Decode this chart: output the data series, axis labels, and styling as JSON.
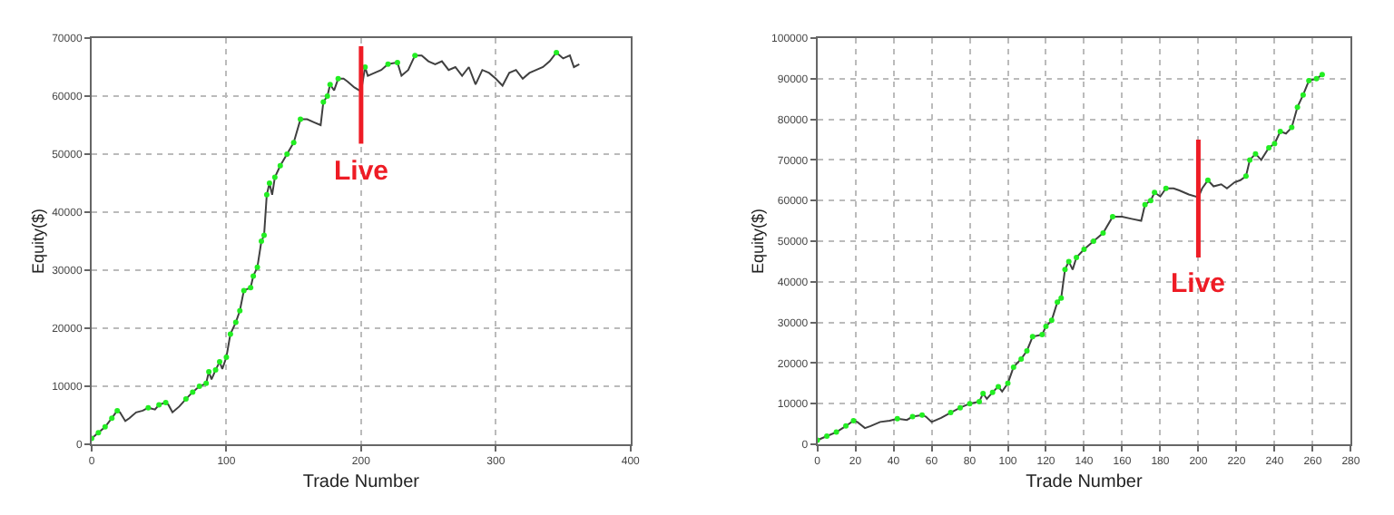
{
  "chart_data": [
    {
      "type": "line",
      "xlabel": "Trade Number",
      "ylabel": "Equity($)",
      "xlim": [
        0,
        400
      ],
      "xticks": [
        0,
        100,
        200,
        300,
        400
      ],
      "ylim": [
        0,
        70000
      ],
      "yticks": [
        0,
        10000,
        20000,
        30000,
        40000,
        50000,
        60000,
        70000
      ],
      "grid": true,
      "ref_lines": [
        {
          "axis": "x",
          "value": 200,
          "label": "Live",
          "color": "#ee1c25"
        }
      ],
      "series": [
        {
          "color": "#404040",
          "x": [
            0,
            5,
            10,
            15,
            19,
            21,
            25,
            28,
            33,
            38,
            42,
            47,
            50,
            55,
            57,
            60,
            65,
            70,
            75,
            80,
            85,
            87,
            89,
            92,
            95,
            97,
            100,
            103,
            107,
            110,
            113,
            118,
            120,
            123,
            126,
            128,
            130,
            132,
            134,
            136,
            140,
            145,
            150,
            155,
            160,
            165,
            170,
            172,
            175,
            177,
            180,
            183,
            187,
            190,
            195,
            200,
            203,
            205,
            210,
            215,
            220,
            227,
            230,
            235,
            240,
            245,
            250,
            255,
            260,
            265,
            270,
            275,
            280,
            285,
            290,
            295,
            300,
            305,
            310,
            315,
            320,
            325,
            330,
            335,
            340,
            345,
            350,
            355,
            358,
            362
          ],
          "values": [
            1000,
            2000,
            3000,
            4500,
            5800,
            5500,
            4000,
            4500,
            5500,
            5800,
            6300,
            6000,
            6800,
            7200,
            6800,
            5500,
            6500,
            7800,
            9000,
            10000,
            10500,
            12500,
            11200,
            12800,
            14200,
            13000,
            15000,
            19000,
            21000,
            23000,
            26500,
            27000,
            29000,
            30500,
            35000,
            36000,
            43000,
            45000,
            43000,
            46000,
            48000,
            50000,
            52000,
            56000,
            56000,
            55500,
            55000,
            59000,
            60000,
            62000,
            61000,
            63000,
            63000,
            62500,
            61500,
            60800,
            65000,
            63500,
            64000,
            64500,
            65500,
            65800,
            63500,
            64500,
            67000,
            67000,
            66000,
            65500,
            66000,
            64500,
            65000,
            63500,
            65000,
            62000,
            64500,
            64000,
            63000,
            61800,
            64000,
            64500,
            63000,
            64000,
            64500,
            65000,
            66000,
            67500,
            66500,
            67000,
            65000,
            65500
          ]
        },
        {
          "type": "scatter",
          "marker": "circle",
          "color": "#22ee22",
          "x": [
            0,
            5,
            10,
            15,
            19,
            42,
            50,
            55,
            70,
            75,
            80,
            85,
            87,
            92,
            95,
            100,
            103,
            107,
            110,
            113,
            118,
            120,
            123,
            126,
            128,
            130,
            132,
            136,
            140,
            145,
            150,
            155,
            172,
            175,
            177,
            183,
            203,
            220,
            227,
            240,
            345
          ],
          "values": [
            1000,
            2000,
            3000,
            4500,
            5800,
            6300,
            6800,
            7200,
            7800,
            9000,
            10000,
            10500,
            12500,
            12800,
            14200,
            15000,
            19000,
            21000,
            23000,
            26500,
            27000,
            29000,
            30500,
            35000,
            36000,
            43000,
            45000,
            46000,
            48000,
            50000,
            52000,
            56000,
            59000,
            60000,
            62000,
            63000,
            65000,
            65500,
            65800,
            67000,
            67500
          ]
        }
      ]
    },
    {
      "type": "line",
      "xlabel": "Trade Number",
      "ylabel": "Equity($)",
      "xlim": [
        0,
        280
      ],
      "xticks": [
        0,
        20,
        40,
        60,
        80,
        100,
        120,
        140,
        160,
        180,
        200,
        220,
        240,
        260,
        280
      ],
      "ylim": [
        0,
        100000
      ],
      "yticks": [
        0,
        10000,
        20000,
        30000,
        40000,
        50000,
        60000,
        70000,
        80000,
        90000,
        100000
      ],
      "grid": true,
      "ref_lines": [
        {
          "axis": "x",
          "value": 200,
          "label": "Live",
          "color": "#ee1c25"
        }
      ],
      "series": [
        {
          "color": "#404040",
          "x": [
            0,
            5,
            10,
            15,
            19,
            21,
            25,
            28,
            33,
            38,
            42,
            47,
            50,
            55,
            57,
            60,
            65,
            70,
            75,
            80,
            85,
            87,
            89,
            92,
            95,
            97,
            100,
            103,
            107,
            110,
            113,
            118,
            120,
            123,
            126,
            128,
            130,
            132,
            134,
            136,
            140,
            145,
            150,
            155,
            160,
            165,
            170,
            172,
            175,
            177,
            180,
            183,
            187,
            190,
            195,
            200,
            202,
            205,
            208,
            212,
            215,
            219,
            222,
            225,
            227,
            230,
            233,
            237,
            240,
            243,
            246,
            249,
            252,
            255,
            258,
            262,
            265
          ],
          "values": [
            1000,
            2000,
            3000,
            4500,
            5800,
            5500,
            4000,
            4500,
            5500,
            5800,
            6300,
            6000,
            6800,
            7200,
            6800,
            5500,
            6500,
            7800,
            9000,
            10000,
            10500,
            12500,
            11200,
            12800,
            14200,
            13000,
            15000,
            19000,
            21000,
            23000,
            26500,
            27000,
            29000,
            30500,
            35000,
            36000,
            43000,
            45000,
            43000,
            46000,
            48000,
            50000,
            52000,
            56000,
            56000,
            55500,
            55000,
            59000,
            60000,
            62000,
            61000,
            63000,
            63000,
            62500,
            61500,
            60800,
            63000,
            65000,
            63500,
            64000,
            63000,
            64500,
            65000,
            66000,
            70000,
            71500,
            70000,
            73000,
            74000,
            77000,
            76500,
            78000,
            83000,
            86000,
            89500,
            90000,
            91000
          ]
        },
        {
          "type": "scatter",
          "marker": "circle",
          "color": "#22ee22",
          "x": [
            0,
            5,
            10,
            15,
            19,
            42,
            50,
            55,
            70,
            75,
            80,
            85,
            87,
            92,
            95,
            100,
            103,
            107,
            110,
            113,
            118,
            120,
            123,
            126,
            128,
            130,
            132,
            136,
            140,
            145,
            150,
            155,
            172,
            175,
            177,
            183,
            205,
            225,
            227,
            230,
            237,
            240,
            243,
            249,
            252,
            255,
            258,
            262,
            265
          ],
          "values": [
            1000,
            2000,
            3000,
            4500,
            5800,
            6300,
            6800,
            7200,
            7800,
            9000,
            10000,
            10500,
            12500,
            12800,
            14200,
            15000,
            19000,
            21000,
            23000,
            26500,
            27000,
            29000,
            30500,
            35000,
            36000,
            43000,
            45000,
            46000,
            48000,
            50000,
            52000,
            56000,
            59000,
            60000,
            62000,
            63000,
            65000,
            66000,
            70000,
            71500,
            73000,
            74000,
            77000,
            78000,
            83000,
            86000,
            89500,
            90000,
            91000
          ]
        }
      ]
    }
  ]
}
